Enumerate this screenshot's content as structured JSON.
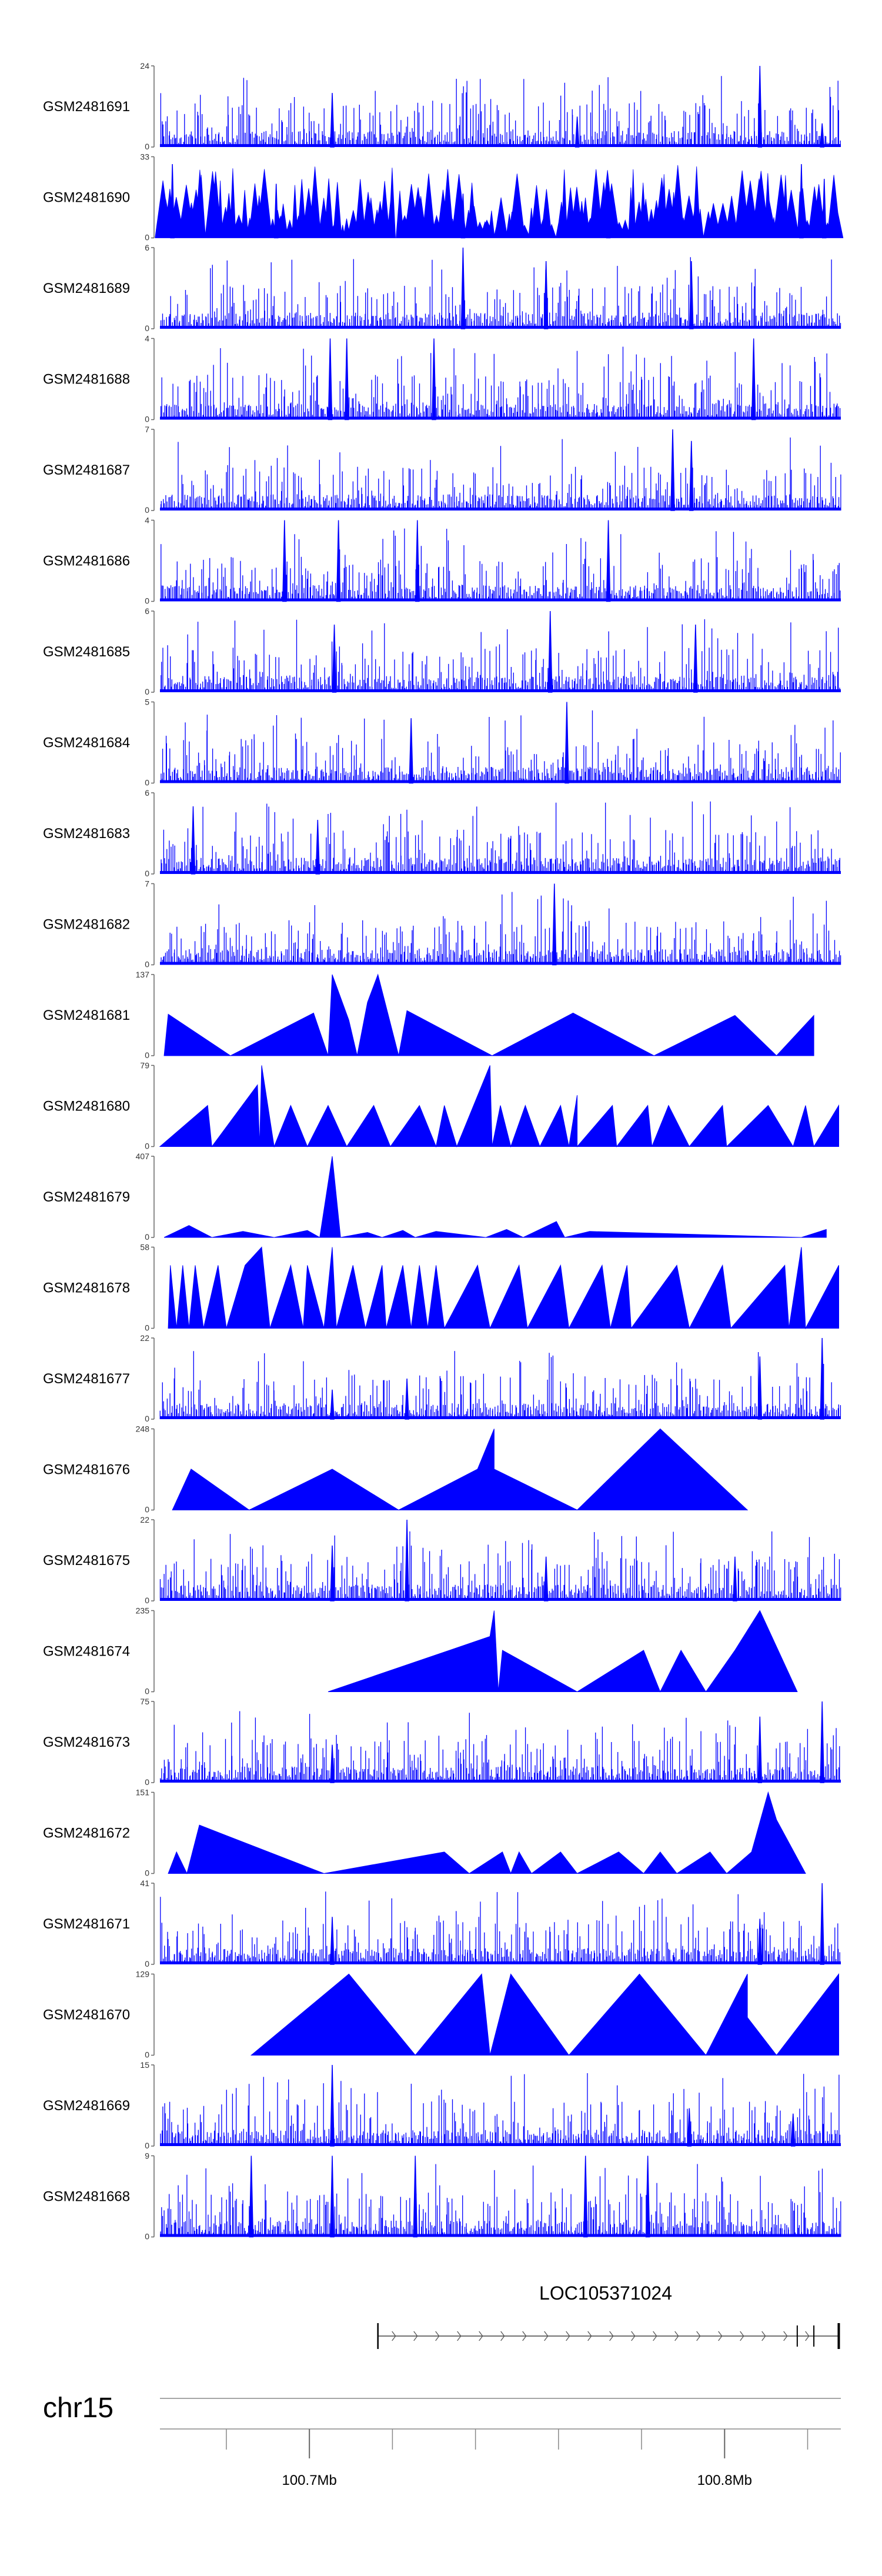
{
  "figure": {
    "type": "genome-browser-coverage-tracks",
    "track_color": "#0000ff",
    "axis_color": "#666666"
  },
  "chart_data": {
    "type": "area",
    "x_unit": "Mb",
    "x_range": [
      100.662,
      100.826
    ],
    "tracks": [
      {
        "name": "GSM2481691",
        "ymax": 24,
        "ymin": 0,
        "style": "dense",
        "peaks": [
          [
            100.7035,
            16
          ],
          [
            100.7625,
            9
          ],
          [
            100.8065,
            24
          ],
          [
            100.8215,
            7
          ]
        ]
      },
      {
        "name": "GSM2481690",
        "ymax": 33,
        "ymin": 0,
        "style": "sparse-dense",
        "peaks": [
          [
            100.665,
            30
          ],
          [
            100.69,
            22
          ],
          [
            100.735,
            18
          ],
          [
            100.77,
            20
          ],
          [
            100.8165,
            30
          ],
          [
            100.822,
            24
          ]
        ]
      },
      {
        "name": "GSM2481689",
        "ymax": 6,
        "ymin": 0,
        "style": "dense",
        "peaks": [
          [
            100.735,
            6
          ],
          [
            100.755,
            5
          ],
          [
            100.79,
            5
          ]
        ]
      },
      {
        "name": "GSM2481688",
        "ymax": 4,
        "ymin": 0,
        "style": "dense",
        "peaks": [
          [
            100.703,
            4
          ],
          [
            100.707,
            4
          ],
          [
            100.728,
            4
          ],
          [
            100.805,
            4
          ]
        ]
      },
      {
        "name": "GSM2481687",
        "ymax": 7,
        "ymin": 0,
        "style": "dense",
        "peaks": [
          [
            100.7855,
            7
          ],
          [
            100.79,
            6
          ]
        ]
      },
      {
        "name": "GSM2481686",
        "ymax": 4,
        "ymin": 0,
        "style": "dense",
        "peaks": [
          [
            100.692,
            4
          ],
          [
            100.705,
            4
          ],
          [
            100.724,
            4
          ],
          [
            100.77,
            4
          ]
        ]
      },
      {
        "name": "GSM2481685",
        "ymax": 6,
        "ymin": 0,
        "style": "dense",
        "peaks": [
          [
            100.704,
            5
          ],
          [
            100.756,
            6
          ],
          [
            100.791,
            5
          ]
        ]
      },
      {
        "name": "GSM2481684",
        "ymax": 5,
        "ymin": 0,
        "style": "dense",
        "peaks": [
          [
            100.7225,
            4
          ],
          [
            100.76,
            5
          ]
        ]
      },
      {
        "name": "GSM2481683",
        "ymax": 6,
        "ymin": 0,
        "style": "dense",
        "peaks": [
          [
            100.67,
            5
          ],
          [
            100.7,
            4
          ]
        ]
      },
      {
        "name": "GSM2481682",
        "ymax": 7,
        "ymin": 0,
        "style": "dense",
        "peaks": [
          [
            100.757,
            7
          ]
        ]
      },
      {
        "name": "GSM2481681",
        "ymax": 137,
        "ymin": 0,
        "style": "sparse",
        "points": [
          [
            100.663,
            0
          ],
          [
            100.664,
            70
          ],
          [
            100.679,
            0
          ],
          [
            100.699,
            72
          ],
          [
            100.7025,
            0
          ],
          [
            100.7035,
            137
          ],
          [
            100.7075,
            60
          ],
          [
            100.7095,
            0
          ],
          [
            100.712,
            90
          ],
          [
            100.7145,
            137
          ],
          [
            100.7195,
            0
          ],
          [
            100.7215,
            76
          ],
          [
            100.742,
            0
          ],
          [
            100.7615,
            72
          ],
          [
            100.781,
            0
          ],
          [
            100.8005,
            68
          ],
          [
            100.8105,
            0
          ],
          [
            100.8195,
            68
          ]
        ]
      },
      {
        "name": "GSM2481680",
        "ymax": 79,
        "ymin": 0,
        "style": "sparse",
        "points": [
          [
            100.662,
            0
          ],
          [
            100.6735,
            40
          ],
          [
            100.6745,
            0
          ],
          [
            100.6855,
            60
          ],
          [
            100.686,
            0
          ],
          [
            100.6865,
            79
          ],
          [
            100.6895,
            0
          ],
          [
            100.6935,
            40
          ],
          [
            100.6975,
            0
          ],
          [
            100.7025,
            40
          ],
          [
            100.707,
            0
          ],
          [
            100.7135,
            40
          ],
          [
            100.7175,
            0
          ],
          [
            100.7245,
            40
          ],
          [
            100.7285,
            0
          ],
          [
            100.7305,
            40
          ],
          [
            100.7335,
            0
          ],
          [
            100.7415,
            79
          ],
          [
            100.742,
            0
          ],
          [
            100.744,
            40
          ],
          [
            100.7465,
            0
          ],
          [
            100.75,
            40
          ],
          [
            100.7535,
            0
          ],
          [
            100.7585,
            40
          ],
          [
            100.7605,
            0
          ],
          [
            100.7625,
            50
          ],
          [
            100.7625,
            0
          ],
          [
            100.771,
            40
          ],
          [
            100.772,
            0
          ],
          [
            100.7795,
            40
          ],
          [
            100.7805,
            0
          ],
          [
            100.7845,
            40
          ],
          [
            100.7895,
            0
          ],
          [
            100.7975,
            40
          ],
          [
            100.7985,
            0
          ],
          [
            100.8085,
            40
          ],
          [
            100.8145,
            0
          ],
          [
            100.8175,
            40
          ],
          [
            100.8195,
            0
          ],
          [
            100.8255,
            40
          ]
        ]
      },
      {
        "name": "GSM2481679",
        "ymax": 407,
        "ymin": 0,
        "style": "sparse",
        "points": [
          [
            100.663,
            0
          ],
          [
            100.669,
            60
          ],
          [
            100.6745,
            0
          ],
          [
            100.682,
            30
          ],
          [
            100.6895,
            0
          ],
          [
            100.6975,
            35
          ],
          [
            100.7005,
            0
          ],
          [
            100.7035,
            407
          ],
          [
            100.7055,
            0
          ],
          [
            100.712,
            25
          ],
          [
            100.7155,
            0
          ],
          [
            100.7205,
            35
          ],
          [
            100.7235,
            0
          ],
          [
            100.7285,
            30
          ],
          [
            100.7405,
            0
          ],
          [
            100.7455,
            40
          ],
          [
            100.7495,
            0
          ],
          [
            100.7575,
            80
          ],
          [
            100.7595,
            0
          ],
          [
            100.7655,
            30
          ],
          [
            100.8165,
            0
          ],
          [
            100.8225,
            40
          ]
        ]
      },
      {
        "name": "GSM2481678",
        "ymax": 58,
        "ymin": 0,
        "style": "sparse",
        "points": [
          [
            100.664,
            0
          ],
          [
            100.6645,
            45
          ],
          [
            100.666,
            0
          ],
          [
            100.6675,
            45
          ],
          [
            100.669,
            0
          ],
          [
            100.6705,
            45
          ],
          [
            100.6725,
            0
          ],
          [
            100.676,
            45
          ],
          [
            100.678,
            0
          ],
          [
            100.6825,
            45
          ],
          [
            100.6865,
            58
          ],
          [
            100.6885,
            0
          ],
          [
            100.6935,
            45
          ],
          [
            100.6965,
            0
          ],
          [
            100.6975,
            45
          ],
          [
            100.7015,
            0
          ],
          [
            100.7035,
            58
          ],
          [
            100.7045,
            0
          ],
          [
            100.7085,
            45
          ],
          [
            100.7115,
            0
          ],
          [
            100.7155,
            45
          ],
          [
            100.7165,
            0
          ],
          [
            100.7205,
            45
          ],
          [
            100.7225,
            0
          ],
          [
            100.7245,
            45
          ],
          [
            100.7265,
            0
          ],
          [
            100.7285,
            45
          ],
          [
            100.7305,
            0
          ],
          [
            100.7385,
            45
          ],
          [
            100.7415,
            0
          ],
          [
            100.7485,
            45
          ],
          [
            100.7505,
            0
          ],
          [
            100.7585,
            45
          ],
          [
            100.7605,
            0
          ],
          [
            100.7685,
            45
          ],
          [
            100.7705,
            0
          ],
          [
            100.7745,
            45
          ],
          [
            100.7755,
            0
          ],
          [
            100.7865,
            45
          ],
          [
            100.7895,
            0
          ],
          [
            100.7975,
            45
          ],
          [
            100.7995,
            0
          ],
          [
            100.8125,
            45
          ],
          [
            100.8135,
            0
          ],
          [
            100.8165,
            58
          ],
          [
            100.8175,
            0
          ],
          [
            100.8255,
            45
          ]
        ]
      },
      {
        "name": "GSM2481677",
        "ymax": 22,
        "ymin": 0,
        "style": "dense",
        "peaks": [
          [
            100.7035,
            8
          ],
          [
            100.7215,
            11
          ],
          [
            100.8065,
            17
          ],
          [
            100.8215,
            22
          ]
        ]
      },
      {
        "name": "GSM2481676",
        "ymax": 248,
        "ymin": 0,
        "style": "sparse",
        "points": [
          [
            100.665,
            0
          ],
          [
            100.6695,
            125
          ],
          [
            100.6835,
            0
          ],
          [
            100.7035,
            125
          ],
          [
            100.7195,
            0
          ],
          [
            100.7385,
            125
          ],
          [
            100.7425,
            248
          ],
          [
            100.7425,
            125
          ],
          [
            100.7625,
            0
          ],
          [
            100.7825,
            248
          ],
          [
            100.8035,
            0
          ]
        ]
      },
      {
        "name": "GSM2481675",
        "ymax": 22,
        "ymin": 0,
        "style": "dense",
        "peaks": [
          [
            100.7035,
            15
          ],
          [
            100.7215,
            22
          ],
          [
            100.755,
            12
          ],
          [
            100.8005,
            12
          ]
        ]
      },
      {
        "name": "GSM2481674",
        "ymax": 235,
        "ymin": 0,
        "style": "sparse",
        "points": [
          [
            100.7025,
            0
          ],
          [
            100.7415,
            160
          ],
          [
            100.7425,
            235
          ],
          [
            100.7435,
            0
          ],
          [
            100.7445,
            120
          ],
          [
            100.7625,
            0
          ],
          [
            100.7785,
            120
          ],
          [
            100.7825,
            0
          ],
          [
            100.7875,
            120
          ],
          [
            100.7935,
            0
          ],
          [
            100.8005,
            120
          ],
          [
            100.8065,
            235
          ],
          [
            100.8155,
            0
          ]
        ]
      },
      {
        "name": "GSM2481673",
        "ymax": 75,
        "ymin": 0,
        "style": "dense",
        "peaks": [
          [
            100.7035,
            35
          ],
          [
            100.8065,
            61
          ],
          [
            100.8215,
            75
          ]
        ]
      },
      {
        "name": "GSM2481672",
        "ymax": 151,
        "ymin": 0,
        "style": "sparse",
        "points": [
          [
            100.664,
            0
          ],
          [
            100.666,
            40
          ],
          [
            100.6685,
            0
          ],
          [
            100.6715,
            90
          ],
          [
            100.7015,
            0
          ],
          [
            100.7305,
            40
          ],
          [
            100.7365,
            0
          ],
          [
            100.7445,
            40
          ],
          [
            100.7465,
            0
          ],
          [
            100.7485,
            40
          ],
          [
            100.7515,
            0
          ],
          [
            100.7585,
            40
          ],
          [
            100.7625,
            0
          ],
          [
            100.7725,
            40
          ],
          [
            100.7785,
            0
          ],
          [
            100.7825,
            40
          ],
          [
            100.7865,
            0
          ],
          [
            100.7945,
            40
          ],
          [
            100.7985,
            0
          ],
          [
            100.8045,
            40
          ],
          [
            100.8085,
            151
          ],
          [
            100.8105,
            100
          ],
          [
            100.8175,
            0
          ]
        ]
      },
      {
        "name": "GSM2481671",
        "ymax": 41,
        "ymin": 0,
        "style": "dense",
        "peaks": [
          [
            100.7035,
            24
          ],
          [
            100.8065,
            23
          ],
          [
            100.8215,
            41
          ]
        ]
      },
      {
        "name": "GSM2481670",
        "ymax": 129,
        "ymin": 0,
        "style": "sparse",
        "points": [
          [
            100.684,
            0
          ],
          [
            100.7075,
            129
          ],
          [
            100.7235,
            0
          ],
          [
            100.7395,
            129
          ],
          [
            100.7415,
            0
          ],
          [
            100.7465,
            129
          ],
          [
            100.7605,
            0
          ],
          [
            100.7775,
            129
          ],
          [
            100.7935,
            0
          ],
          [
            100.8035,
            129
          ],
          [
            100.8035,
            60
          ],
          [
            100.8105,
            0
          ],
          [
            100.8255,
            129
          ]
        ]
      },
      {
        "name": "GSM2481669",
        "ymax": 15,
        "ymin": 0,
        "style": "dense",
        "peaks": [
          [
            100.7035,
            15
          ],
          [
            100.7895,
            7
          ],
          [
            100.8145,
            6
          ]
        ]
      },
      {
        "name": "GSM2481668",
        "ymax": 9,
        "ymin": 0,
        "style": "dense",
        "peaks": [
          [
            100.684,
            9
          ],
          [
            100.7035,
            9
          ],
          [
            100.7235,
            9
          ],
          [
            100.7645,
            9
          ],
          [
            100.7795,
            9
          ]
        ]
      }
    ],
    "gene": {
      "name": "LOC105371024",
      "start": 100.7145,
      "end": 100.8255,
      "markers": [
        100.8155,
        100.8195
      ]
    },
    "chromosome": "chr15",
    "genome_axis": {
      "ticks": [
        100.678,
        100.698,
        100.718,
        100.738,
        100.758,
        100.778,
        100.798,
        100.818
      ],
      "labeled_ticks": [
        {
          "pos": 100.698,
          "label": "100.7Mb"
        },
        {
          "pos": 100.798,
          "label": "100.8Mb"
        }
      ]
    }
  }
}
